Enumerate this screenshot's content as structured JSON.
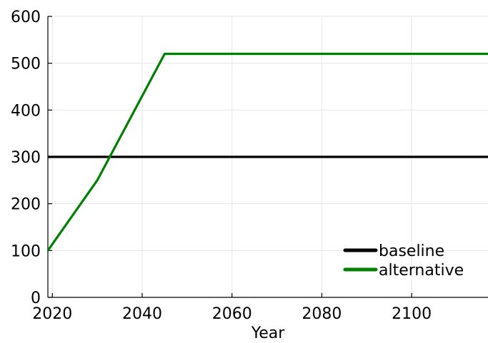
{
  "chart_data": {
    "type": "line",
    "title": "",
    "xlabel": "Year",
    "ylabel": "",
    "xlim": [
      2019,
      2117
    ],
    "ylim": [
      0,
      600
    ],
    "x_ticks": [
      2020,
      2040,
      2060,
      2080,
      2100
    ],
    "y_ticks": [
      0,
      100,
      200,
      300,
      400,
      500,
      600
    ],
    "grid": true,
    "legend_position": "bottom-right",
    "series": [
      {
        "name": "baseline",
        "color": "#000000",
        "x": [
          2019,
          2117
        ],
        "y": [
          300,
          300
        ]
      },
      {
        "name": "alternative",
        "color": "#008000",
        "x": [
          2019,
          2030,
          2045,
          2117
        ],
        "y": [
          100,
          250,
          520,
          520
        ]
      }
    ]
  }
}
